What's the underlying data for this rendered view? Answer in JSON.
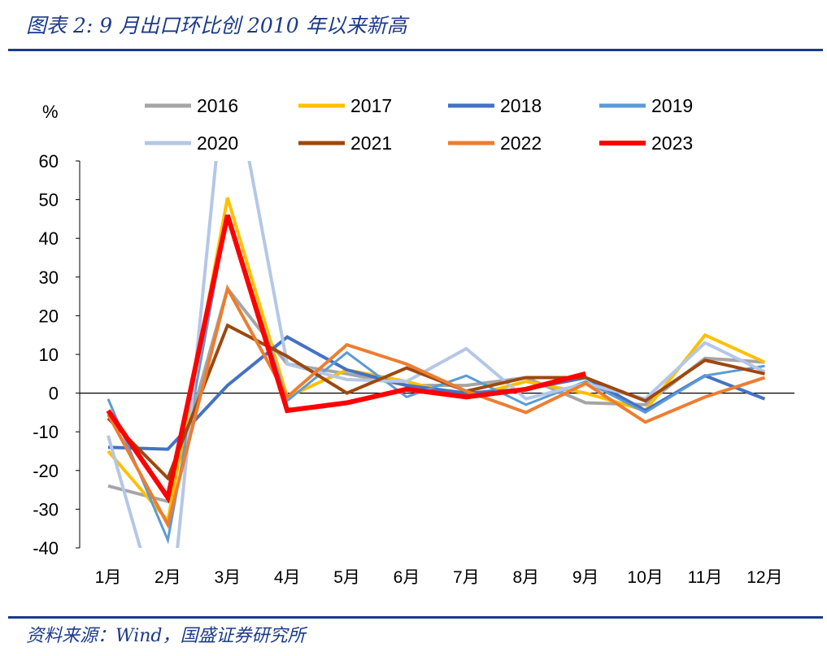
{
  "title": "图表 2:  9 月出口环比创 2010 年以来新高",
  "source": "资料来源：Wind，国盛证券研究所",
  "chart_data": {
    "type": "line",
    "title": "图表 2:  9 月出口环比创 2010 年以来新高",
    "ylabel": "%",
    "xlabel": "",
    "ylim": [
      -40,
      60
    ],
    "yticks": [
      60,
      50,
      40,
      30,
      20,
      10,
      0,
      -10,
      -20,
      -30,
      -40
    ],
    "categories": [
      "1月",
      "2月",
      "3月",
      "4月",
      "5月",
      "6月",
      "7月",
      "8月",
      "9月",
      "10月",
      "11月",
      "12月"
    ],
    "legend_position": "top",
    "series": [
      {
        "name": "2016",
        "color": "#a5a5a5",
        "width": 4,
        "values": [
          -24,
          -28,
          27,
          7.5,
          5,
          2,
          2,
          4,
          -2.5,
          -3,
          9,
          8
        ]
      },
      {
        "name": "2017",
        "color": "#ffc000",
        "width": 4,
        "values": [
          -15,
          -33,
          50.5,
          -1,
          6,
          3,
          -1,
          3,
          0,
          -4.5,
          15,
          8
        ]
      },
      {
        "name": "2018",
        "color": "#4472c4",
        "width": 4,
        "values": [
          -14,
          -14.5,
          2,
          14.5,
          6,
          2,
          0,
          1,
          4,
          -4.5,
          4.5,
          -1.5
        ]
      },
      {
        "name": "2019",
        "color": "#5b9bd5",
        "width": 3,
        "values": [
          -1.5,
          -38,
          46,
          -2,
          10.5,
          -1,
          4.5,
          -3,
          3,
          -5,
          4.5,
          7
        ]
      },
      {
        "name": "2020",
        "color": "#b4c7e7",
        "width": 4,
        "values": [
          -11,
          -65,
          90,
          7.5,
          3.5,
          3,
          11.5,
          -1.5,
          2.5,
          -1.5,
          13,
          5.5
        ]
      },
      {
        "name": "2021",
        "color": "#9e480e",
        "width": 4,
        "values": [
          -6.5,
          -22,
          17.5,
          9.5,
          0,
          6.5,
          0.5,
          4,
          4,
          -2,
          8.5,
          5
        ]
      },
      {
        "name": "2022",
        "color": "#ed7d31",
        "width": 4,
        "values": [
          -5.5,
          -34,
          27,
          -1,
          12.5,
          7.5,
          0.5,
          -5,
          2.5,
          -7.5,
          -1,
          4
        ]
      },
      {
        "name": "2023",
        "color": "#ff0000",
        "width": 6,
        "values": [
          -4.5,
          -27,
          46,
          -4.5,
          -2.5,
          1,
          -1,
          1,
          5,
          null,
          null,
          null
        ]
      }
    ]
  }
}
